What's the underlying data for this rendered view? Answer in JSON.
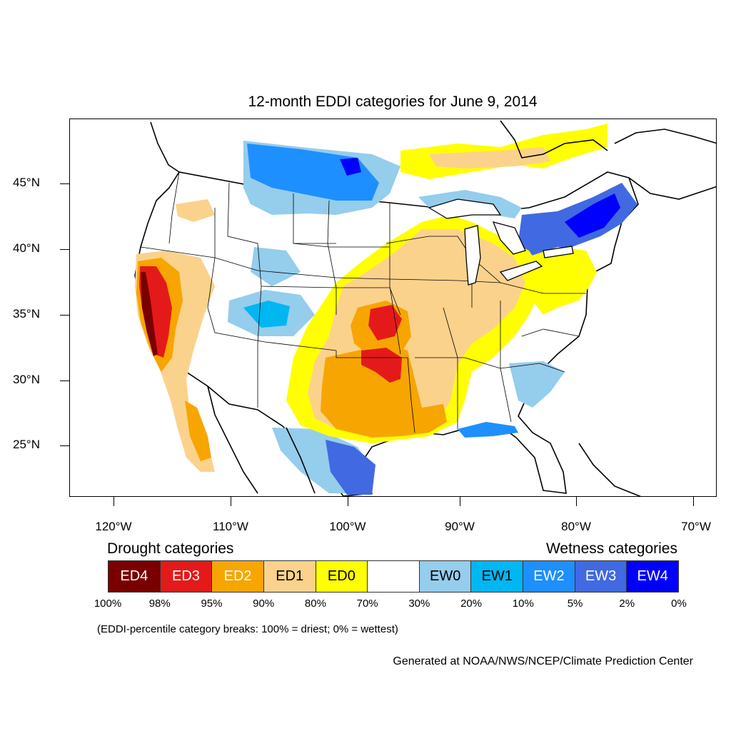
{
  "title": "12-month EDDI categories for June 9, 2014",
  "latitude_labels": [
    "45°N",
    "40°N",
    "35°N",
    "30°N",
    "25°N"
  ],
  "longitude_labels": [
    "120°W",
    "110°W",
    "100°W",
    "90°W",
    "80°W",
    "70°W"
  ],
  "drought_title": "Drought categories",
  "wetness_title": "Wetness categories",
  "legend": [
    {
      "label": "ED4",
      "color": "#7a0000",
      "text_color": "#ffffff"
    },
    {
      "label": "ED3",
      "color": "#e41a1a",
      "text_color": "#ffffff"
    },
    {
      "label": "ED2",
      "color": "#f7a500",
      "text_color": "#ffffff"
    },
    {
      "label": "ED1",
      "color": "#fbd28c",
      "text_color": "#000000"
    },
    {
      "label": "ED0",
      "color": "#ffff00",
      "text_color": "#000000"
    },
    {
      "label": "",
      "color": "#ffffff",
      "text_color": "#000000"
    },
    {
      "label": "EW0",
      "color": "#95cdec",
      "text_color": "#000000"
    },
    {
      "label": "EW1",
      "color": "#00b7f1",
      "text_color": "#000000"
    },
    {
      "label": "EW2",
      "color": "#1e8fff",
      "text_color": "#ffffff"
    },
    {
      "label": "EW3",
      "color": "#4169e1",
      "text_color": "#ffffff"
    },
    {
      "label": "EW4",
      "color": "#0000ff",
      "text_color": "#ffffff"
    }
  ],
  "breaks": [
    "100%",
    "98%",
    "95%",
    "90%",
    "80%",
    "70%",
    "30%",
    "20%",
    "10%",
    "5%",
    "2%",
    "0%"
  ],
  "note": "(EDDI-percentile category breaks: 100% = driest; 0% = wettest)",
  "credit": "Generated at NOAA/NWS/NCEP/Climate Prediction Center"
}
